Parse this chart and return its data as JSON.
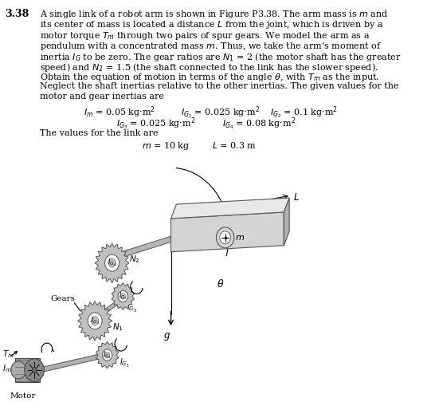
{
  "problem_number": "3.38",
  "paragraph_lines": [
    "A single link of a robot arm is shown in Figure P3.38. The arm mass is $m$ and",
    "its center of mass is located a distance $L$ from the joint, which is driven by a",
    "motor torque $T_m$ through two pairs of spur gears. We model the arm as a",
    "pendulum with a concentrated mass $m$. Thus, we take the arm’s moment of",
    "inertia $I_G$ to be zero. The gear ratios are $N_1$ = 2 (the motor shaft has the greater",
    "speed) and $N_2$ = 1.5 (the shaft connected to the link has the slower speed).",
    "Obtain the equation of motion in terms of the angle $\\theta$, with $T_m$ as the input.",
    "Neglect the shaft inertias relative to the other inertias. The given values for the",
    "motor and gear inertias are"
  ],
  "bg_color": "#ffffff",
  "text_color": "#000000",
  "gear_color": "#bbbbbb",
  "shaft_color": "#aaaaaa",
  "arm_front_color": "#d4d4d4",
  "arm_top_color": "#e8e8e8",
  "arm_side_color": "#b0b0b0",
  "motor_color": "#aaaaaa"
}
